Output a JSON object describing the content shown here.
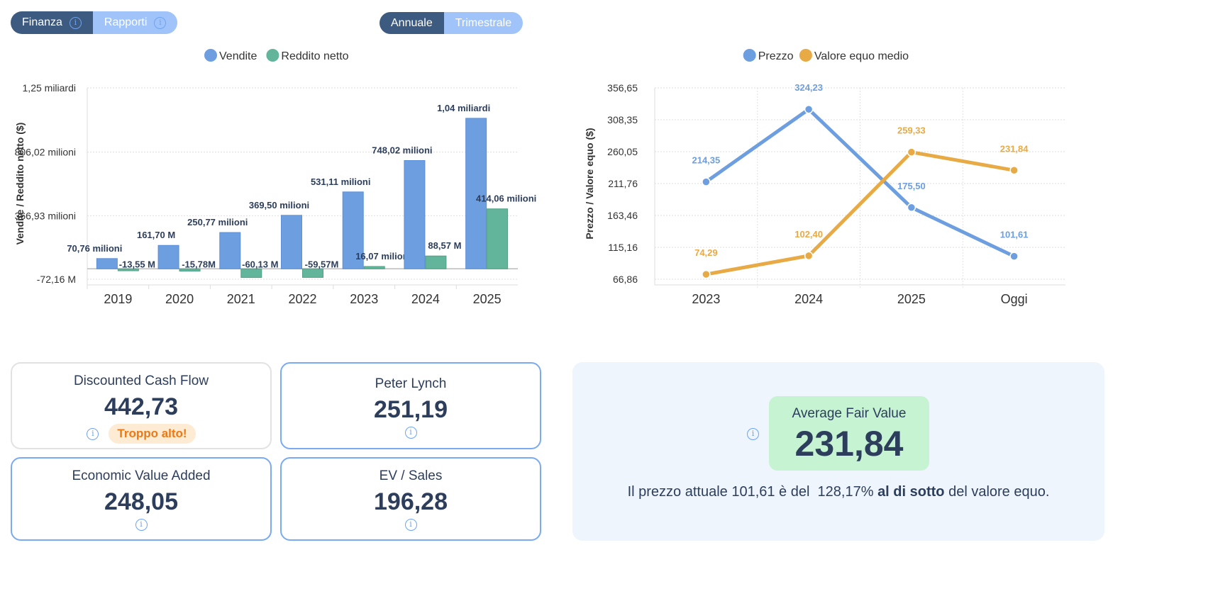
{
  "tabs": {
    "finanza": "Finanza",
    "rapporti": "Rapporti"
  },
  "period": {
    "annuale": "Annuale",
    "trimestrale": "Trimestrale"
  },
  "chart_data": [
    {
      "type": "bar",
      "title": "",
      "ylabel": "Vendite / Reddito netto ($)",
      "xlabel": "",
      "categories": [
        "2019",
        "2020",
        "2021",
        "2022",
        "2023",
        "2024",
        "2025"
      ],
      "yticks": [
        {
          "v": 1250,
          "label": "1,25 miliardi"
        },
        {
          "v": 806.02,
          "label": "806,02 milioni"
        },
        {
          "v": 366.93,
          "label": "366,93 milioni"
        },
        {
          "v": -72.16,
          "label": "-72,16 M"
        }
      ],
      "ylim": [
        -72.16,
        1250
      ],
      "unit": "milioni",
      "series": [
        {
          "name": "Vendite",
          "color": "#6c9ee0",
          "values": [
            70.76,
            161.7,
            250.77,
            369.5,
            531.11,
            748.02,
            1040
          ],
          "labels": [
            "70,76 milioni",
            "161,70 M",
            "250,77 milioni",
            "369,50 milioni",
            "531,11 milioni",
            "748,02 milioni",
            "1,04 miliardi"
          ]
        },
        {
          "name": "Reddito netto",
          "color": "#62b59a",
          "values": [
            -13.55,
            -15.78,
            -60.13,
            -59.57,
            16.07,
            88.57,
            414.06
          ],
          "labels": [
            "-13,55 M",
            "-15,78M",
            "-60,13 M",
            "-59,57M",
            "16,07 milioni",
            "88,57 M",
            "414,06 milioni"
          ]
        }
      ],
      "legend": "top-center",
      "grid": true
    },
    {
      "type": "line",
      "title": "",
      "ylabel": "Prezzo / Valore equo ($)",
      "xlabel": "",
      "categories": [
        "2023",
        "2024",
        "2025",
        "Oggi"
      ],
      "yticks": [
        "356,65",
        "308,35",
        "260,05",
        "211,76",
        "163,46",
        "115,16",
        "66,86"
      ],
      "ylim": [
        66.86,
        356.65
      ],
      "series": [
        {
          "name": "Prezzo",
          "color": "#6c9ee0",
          "values": [
            214.35,
            324.23,
            175.5,
            101.61
          ],
          "labels": [
            "214,35",
            "324,23",
            "175,50",
            "101,61"
          ]
        },
        {
          "name": "Valore equo medio",
          "color": "#e8aa45",
          "values": [
            74.29,
            102.4,
            259.33,
            231.84
          ],
          "labels": [
            "74,29",
            "102,40",
            "259,33",
            "231,84"
          ]
        }
      ],
      "legend": "top-center",
      "grid": true
    }
  ],
  "cards": [
    {
      "title": "Discounted Cash Flow",
      "value": "442,73",
      "badge": "Troppo alto!"
    },
    {
      "title": "Peter Lynch",
      "value": "251,19"
    },
    {
      "title": "Economic Value Added",
      "value": "248,05"
    },
    {
      "title": "EV / Sales",
      "value": "196,28"
    }
  ],
  "summary": {
    "label": "Average Fair Value",
    "value": "231,84",
    "msg_prefix": "Il prezzo attuale 101,61 è del  128,17% ",
    "msg_bold": "al di sotto",
    "msg_suffix": " del valore equo."
  }
}
